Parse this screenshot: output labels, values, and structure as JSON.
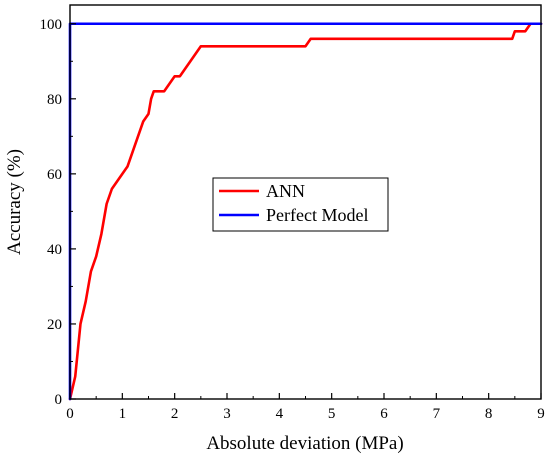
{
  "chart_data": {
    "type": "line",
    "title": "",
    "xlabel": "Absolute deviation (MPa)",
    "ylabel": "Accuracy (%)",
    "xlim": [
      0,
      9
    ],
    "ylim": [
      0,
      105
    ],
    "x_ticks": [
      "0",
      "1",
      "2",
      "3",
      "4",
      "5",
      "6",
      "7",
      "8",
      "9"
    ],
    "y_ticks": [
      "0",
      "20",
      "40",
      "60",
      "80",
      "100"
    ],
    "grid": false,
    "legend_position": "center",
    "series": [
      {
        "name": "ANN",
        "color": "#ff0000",
        "x": [
          0,
          0.1,
          0.2,
          0.3,
          0.4,
          0.5,
          0.6,
          0.7,
          0.8,
          0.9,
          1.0,
          1.1,
          1.2,
          1.3,
          1.4,
          1.5,
          1.55,
          1.6,
          1.7,
          1.8,
          1.9,
          2.0,
          2.1,
          2.2,
          2.3,
          2.4,
          2.5,
          2.6,
          3.0,
          4.0,
          4.5,
          4.6,
          5.0,
          6.0,
          7.0,
          8.0,
          8.45,
          8.5,
          8.6,
          8.7,
          8.8,
          9.0
        ],
        "y": [
          0,
          6,
          20,
          26,
          34,
          38,
          44,
          52,
          56,
          58,
          60,
          62,
          66,
          70,
          74,
          76,
          80,
          82,
          82,
          82,
          84,
          86,
          86,
          88,
          90,
          92,
          94,
          94,
          94,
          94,
          94,
          96,
          96,
          96,
          96,
          96,
          96,
          98,
          98,
          98,
          100,
          100
        ]
      },
      {
        "name": "Perfect Model",
        "color": "#0000ff",
        "x": [
          0,
          0,
          9
        ],
        "y": [
          0,
          100,
          100
        ]
      }
    ]
  }
}
